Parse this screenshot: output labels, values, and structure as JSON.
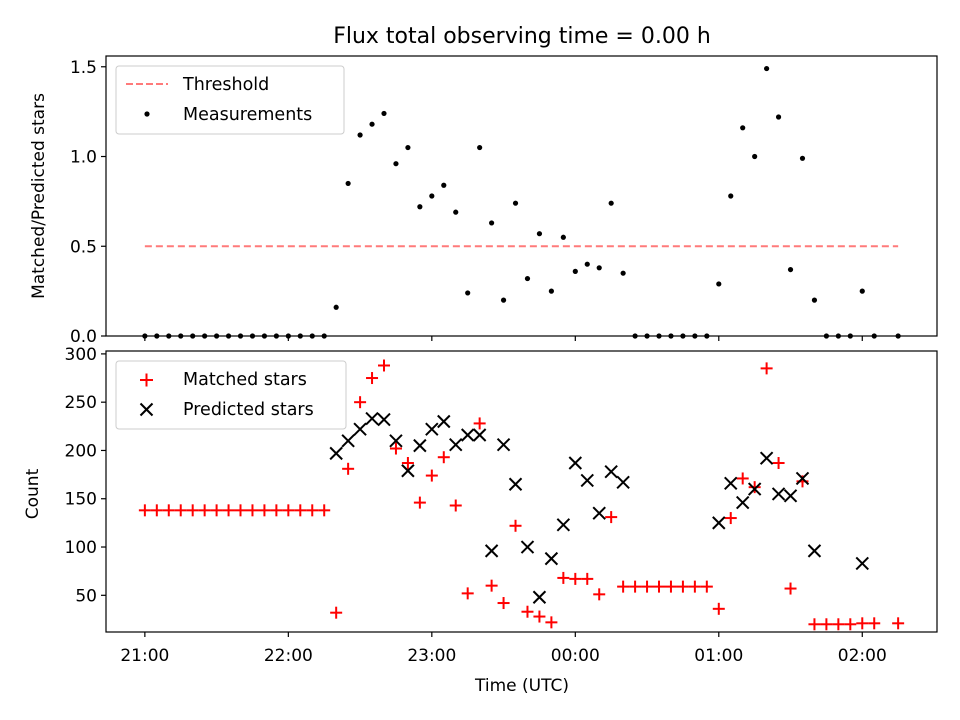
{
  "title": "Flux total observing time = 0.00 h",
  "chart_data": [
    {
      "type": "scatter",
      "ylabel": "Matched/Predicted stars",
      "ylim": [
        0,
        1.56
      ],
      "yticks": [
        0.0,
        0.5,
        1.0,
        1.5
      ],
      "ytick_labels": [
        "0.0",
        "0.5",
        "1.0",
        "1.5"
      ],
      "legend": {
        "position": "upper-left",
        "entries": [
          "Threshold",
          "Measurements"
        ]
      },
      "threshold": {
        "name": "Threshold",
        "value": 0.5,
        "x_start": 0.0,
        "x_end": 6.3,
        "color": "#ff7a7a"
      },
      "series": [
        {
          "name": "Measurements",
          "color": "#000000",
          "x": [
            0.0,
            0.1,
            0.2,
            0.3,
            0.4,
            0.5,
            0.6,
            0.7,
            0.8,
            0.9,
            1.0,
            1.1,
            1.2,
            1.3,
            1.4,
            1.5,
            1.6,
            1.7,
            1.8,
            1.9,
            2.0,
            2.1,
            2.2,
            2.3,
            2.4,
            2.5,
            2.6,
            2.7,
            2.8,
            2.9,
            3.0,
            3.1,
            3.2,
            3.3,
            3.4,
            3.5,
            3.6,
            3.7,
            3.8,
            3.9,
            4.0,
            4.1,
            4.2,
            4.3,
            4.4,
            4.5,
            4.6,
            4.7,
            4.8,
            4.9,
            5.0,
            5.1,
            5.2,
            5.3,
            5.4,
            5.5,
            5.6,
            5.7,
            5.8,
            5.9,
            6.0,
            6.1,
            6.3
          ],
          "y": [
            0,
            0,
            0,
            0,
            0,
            0,
            0,
            0,
            0,
            0,
            0,
            0,
            0,
            0,
            0,
            0,
            0.16,
            0.85,
            1.12,
            1.18,
            1.24,
            0.96,
            1.05,
            0.72,
            0.78,
            0.84,
            0.69,
            0.24,
            1.05,
            0.63,
            0.2,
            0.74,
            0.32,
            0.57,
            0.25,
            0.55,
            0.36,
            0.4,
            0.38,
            0.74,
            0.35,
            0,
            0,
            0,
            0,
            0,
            0,
            0,
            0.29,
            0.78,
            1.16,
            1.0,
            1.49,
            1.22,
            0.37,
            0.99,
            0.2,
            0,
            0,
            0,
            0.25,
            0,
            0
          ]
        }
      ]
    },
    {
      "type": "scatter",
      "xlabel": "Time (UTC)",
      "ylabel": "Count",
      "ylim": [
        12,
        303
      ],
      "yticks": [
        50,
        100,
        150,
        200,
        250,
        300
      ],
      "ytick_labels": [
        "50",
        "100",
        "150",
        "200",
        "250",
        "300"
      ],
      "xlim": [
        -0.325,
        6.625
      ],
      "xticks": [
        0,
        1.2,
        2.4,
        3.6,
        4.8,
        6.0
      ],
      "xtick_labels": [
        "21:00",
        "22:00",
        "23:00",
        "00:00",
        "01:00",
        "02:00"
      ],
      "legend": {
        "position": "upper-left",
        "entries": [
          "Matched stars",
          "Predicted stars"
        ]
      },
      "series": [
        {
          "name": "Matched stars",
          "marker": "plus",
          "color": "#ff0000",
          "x": [
            0.0,
            0.1,
            0.2,
            0.3,
            0.4,
            0.5,
            0.6,
            0.7,
            0.8,
            0.9,
            1.0,
            1.1,
            1.2,
            1.3,
            1.4,
            1.5,
            1.6,
            1.7,
            1.8,
            1.9,
            2.0,
            2.1,
            2.2,
            2.3,
            2.4,
            2.5,
            2.6,
            2.7,
            2.8,
            2.9,
            3.0,
            3.1,
            3.2,
            3.3,
            3.4,
            3.5,
            3.6,
            3.7,
            3.8,
            3.9,
            4.0,
            4.1,
            4.2,
            4.3,
            4.4,
            4.5,
            4.6,
            4.7,
            4.8,
            4.9,
            5.0,
            5.1,
            5.2,
            5.3,
            5.4,
            5.5,
            5.6,
            5.7,
            5.8,
            5.9,
            6.0,
            6.1,
            6.3
          ],
          "y": [
            138,
            138,
            138,
            138,
            138,
            138,
            138,
            138,
            138,
            138,
            138,
            138,
            138,
            138,
            138,
            138,
            32,
            181,
            250,
            275,
            288,
            202,
            187,
            146,
            174,
            193,
            143,
            52,
            228,
            60,
            42,
            122,
            33,
            28,
            22,
            68,
            67,
            67,
            51,
            131,
            59,
            59,
            59,
            59,
            59,
            59,
            59,
            59,
            36,
            130,
            171,
            162,
            285,
            187,
            57,
            168,
            20,
            20,
            20,
            20,
            21,
            21,
            21
          ]
        },
        {
          "name": "Predicted stars",
          "marker": "x",
          "color": "#000000",
          "x": [
            1.6,
            1.7,
            1.8,
            1.9,
            2.0,
            2.1,
            2.2,
            2.3,
            2.4,
            2.5,
            2.6,
            2.7,
            2.8,
            2.9,
            3.0,
            3.1,
            3.2,
            3.3,
            3.4,
            3.5,
            3.6,
            3.7,
            3.8,
            3.9,
            4.0,
            4.8,
            4.9,
            5.0,
            5.1,
            5.2,
            5.3,
            5.4,
            5.5,
            5.6,
            6.0
          ],
          "y": [
            197,
            210,
            222,
            233,
            232,
            210,
            179,
            205,
            222,
            230,
            206,
            216,
            216,
            96,
            206,
            165,
            100,
            48,
            88,
            123,
            187,
            169,
            135,
            178,
            167,
            125,
            166,
            146,
            160,
            192,
            155,
            153,
            171,
            96,
            83
          ]
        }
      ]
    }
  ]
}
